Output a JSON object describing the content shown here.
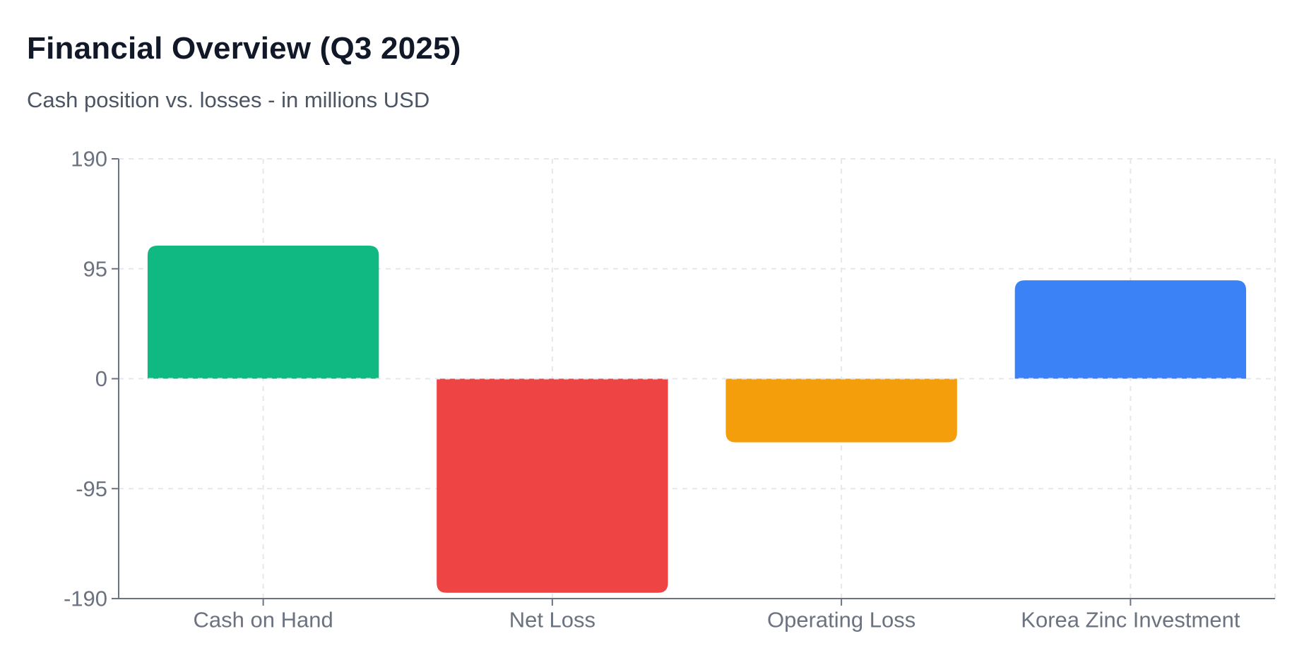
{
  "header": {
    "title": "Financial Overview (Q3 2025)",
    "subtitle": "Cash position vs. losses - in millions USD"
  },
  "chart_data": {
    "type": "bar",
    "title": "Financial Overview (Q3 2025)",
    "subtitle": "Cash position vs. losses - in millions USD",
    "xlabel": "",
    "ylabel": "",
    "categories": [
      "Cash on Hand",
      "Net Loss",
      "Operating Loss",
      "Korea Zinc Investment"
    ],
    "values": [
      115,
      -185,
      -55,
      85
    ],
    "colors": [
      "#10b981",
      "#ef4444",
      "#f59e0b",
      "#3b82f6"
    ],
    "ylim": [
      -190,
      190
    ],
    "yticks": [
      -190,
      -95,
      0,
      95,
      190
    ],
    "grid": true,
    "legend": false
  }
}
